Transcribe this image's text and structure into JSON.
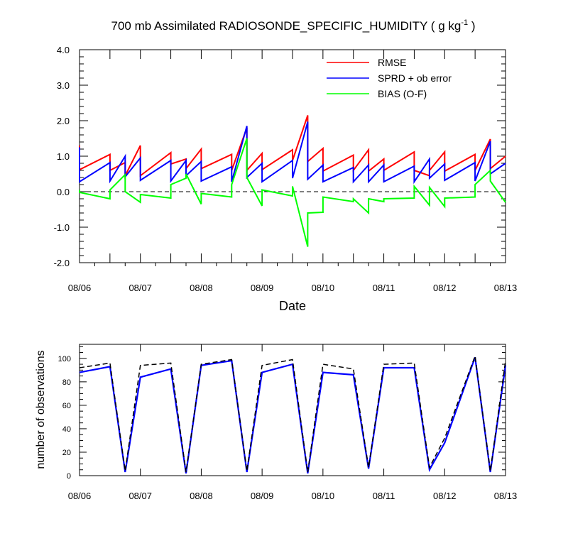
{
  "title_main": "700 mb Assimilated RADIOSONDE_SPECIFIC_HUMIDITY ( g kg",
  "title_sup": "-1",
  "title_end": " )",
  "colors": {
    "rmse": "#ff0000",
    "sprd": "#0000ff",
    "bias": "#00ff00",
    "obs_used": "#0000ff",
    "obs_poss": "#000000"
  },
  "chart_data": [
    {
      "type": "line",
      "xlabel": "Date",
      "ylabel": "",
      "xlim": [
        0,
        7
      ],
      "ylim": [
        -2,
        4
      ],
      "x_tick_labels": [
        "08/06",
        "08/07",
        "08/08",
        "08/09",
        "08/10",
        "08/11",
        "08/12",
        "08/13"
      ],
      "y_tick_labels": [
        "4.0",
        "3.0",
        "2.0",
        "1.0",
        "0.0",
        "-1.0",
        "-2.0"
      ],
      "legend_position": "top-right",
      "zero_reference_line": 0,
      "series": [
        {
          "name": "RMSE",
          "x": [
            0,
            0,
            0.5,
            0.5,
            0.75,
            0.75,
            1,
            1,
            1.5,
            1.5,
            1.75,
            1.75,
            2,
            2,
            2.5,
            2.5,
            2.75,
            2.75,
            3,
            3,
            3.5,
            3.5,
            3.75,
            3.75,
            4,
            4,
            4.5,
            4.5,
            4.75,
            4.75,
            5,
            5,
            5.5,
            5.5,
            5.75,
            5.75,
            6,
            6,
            6.5,
            6.5,
            6.75,
            6.75,
            7
          ],
          "y": [
            1.3,
            0.62,
            1.05,
            0.6,
            0.82,
            0.45,
            1.3,
            0.45,
            1.1,
            0.78,
            0.92,
            0.65,
            1.2,
            0.65,
            1.05,
            0.6,
            1.8,
            0.6,
            1.08,
            0.62,
            1.18,
            0.88,
            2.15,
            0.85,
            1.22,
            0.58,
            1.03,
            0.6,
            1.18,
            0.58,
            0.92,
            0.6,
            1.12,
            0.6,
            0.45,
            0.6,
            1.12,
            0.58,
            1.05,
            0.6,
            1.48,
            0.65,
            1.0
          ]
        },
        {
          "name": "SPRD + ob error",
          "x": [
            0,
            0,
            0.5,
            0.5,
            0.75,
            0.75,
            1,
            1,
            1.5,
            1.5,
            1.75,
            1.75,
            2,
            2,
            2.5,
            2.5,
            2.75,
            2.75,
            3,
            3,
            3.5,
            3.5,
            3.75,
            3.75,
            4,
            4,
            4.5,
            4.5,
            4.75,
            4.75,
            5,
            5,
            5.5,
            5.5,
            5.75,
            5.75,
            6,
            6,
            6.5,
            6.5,
            6.75,
            6.75,
            7
          ],
          "y": [
            1.25,
            0.28,
            0.82,
            0.3,
            1.0,
            0.42,
            0.95,
            0.32,
            0.88,
            0.3,
            0.88,
            0.45,
            0.85,
            0.3,
            0.7,
            0.28,
            1.85,
            0.4,
            0.8,
            0.28,
            0.88,
            0.38,
            1.97,
            0.35,
            0.75,
            0.28,
            0.68,
            0.28,
            0.75,
            0.28,
            0.75,
            0.28,
            0.72,
            0.28,
            0.92,
            0.38,
            0.78,
            0.32,
            0.82,
            0.3,
            1.42,
            0.5,
            0.8
          ]
        },
        {
          "name": "BIAS (O-F)",
          "x": [
            0,
            0,
            0.5,
            0.5,
            0.75,
            0.75,
            1,
            1,
            1.5,
            1.5,
            1.75,
            1.75,
            2,
            2,
            2.5,
            2.5,
            2.75,
            2.75,
            3,
            3,
            3.5,
            3.5,
            3.75,
            3.75,
            4,
            4,
            4.5,
            4.5,
            4.75,
            4.75,
            5,
            5,
            5.5,
            5.5,
            5.75,
            5.75,
            6,
            6,
            6.5,
            6.5,
            6.75,
            6.75,
            7
          ],
          "y": [
            0.05,
            -0.02,
            -0.2,
            0.05,
            0.48,
            0.0,
            -0.3,
            -0.08,
            -0.18,
            0.2,
            0.38,
            0.5,
            -0.35,
            -0.05,
            -0.15,
            0.2,
            1.5,
            0.4,
            -0.4,
            0.05,
            -0.12,
            0.15,
            -1.55,
            -0.6,
            -0.58,
            -0.15,
            -0.28,
            -0.2,
            -0.6,
            -0.2,
            -0.28,
            -0.2,
            -0.18,
            0.15,
            -0.38,
            0.12,
            -0.42,
            -0.18,
            -0.15,
            0.2,
            0.6,
            0.3,
            -0.3
          ]
        }
      ]
    },
    {
      "type": "line",
      "xlabel": "",
      "ylabel": "number of observations",
      "xlim": [
        0,
        7
      ],
      "ylim": [
        0,
        112
      ],
      "x_tick_labels": [
        "08/06",
        "08/07",
        "08/08",
        "08/09",
        "08/10",
        "08/11",
        "08/12",
        "08/13"
      ],
      "y_tick_labels": [
        "100",
        "80",
        "60",
        "40",
        "20",
        "0"
      ],
      "series": [
        {
          "name": "",
          "style": "solid",
          "x": [
            0,
            0.5,
            0.75,
            1,
            1.5,
            1.75,
            2,
            2.5,
            2.75,
            3,
            3.5,
            3.75,
            4,
            4.5,
            4.75,
            5,
            5.5,
            5.75,
            6,
            6.5,
            6.75,
            7
          ],
          "y": [
            88,
            93,
            3,
            84,
            91,
            2,
            94,
            98,
            3,
            88,
            95,
            2,
            88,
            86,
            6,
            92,
            92,
            5,
            28,
            101,
            3,
            94
          ]
        },
        {
          "name": "",
          "style": "dashed",
          "x": [
            0,
            0.5,
            0.75,
            1,
            1.5,
            1.75,
            2,
            2.5,
            2.75,
            3,
            3.5,
            3.75,
            4,
            4.5,
            4.75,
            5,
            5.5,
            5.75,
            6,
            6.5,
            6.75,
            7
          ],
          "y": [
            92,
            96,
            4,
            94,
            96,
            3,
            95,
            99,
            4,
            94,
            99,
            3,
            95,
            91,
            7,
            95,
            96,
            7,
            32,
            102,
            4,
            98
          ]
        }
      ]
    }
  ]
}
